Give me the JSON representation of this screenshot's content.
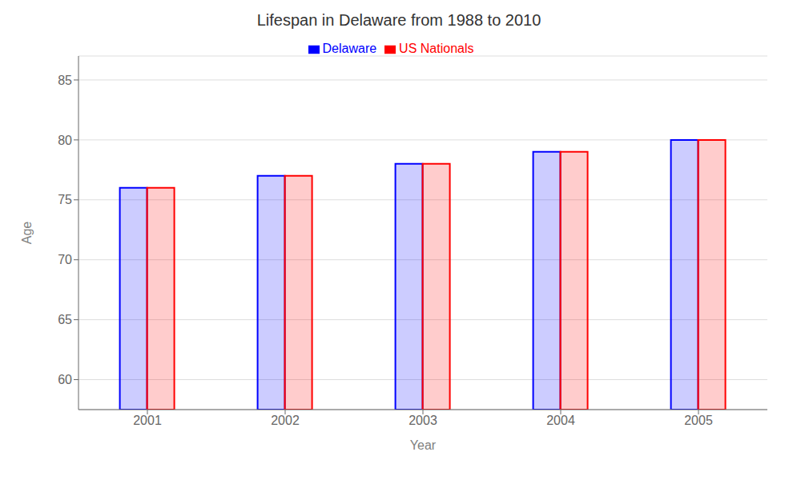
{
  "chart_data": {
    "type": "bar",
    "title": "Lifespan in Delaware from 1988 to 2010",
    "x_label": "Year",
    "y_label": "Age",
    "categories": [
      "2001",
      "2002",
      "2003",
      "2004",
      "2005"
    ],
    "series": [
      {
        "name": "Delaware",
        "color": "#0000FF",
        "values": [
          76,
          77,
          78,
          79,
          80
        ]
      },
      {
        "name": "US Nationals",
        "color": "#FF0000",
        "values": [
          76,
          77,
          78,
          79,
          80
        ]
      }
    ],
    "ylim": [
      57.5,
      87
    ],
    "yticks": [
      60,
      65,
      70,
      75,
      80,
      85
    ],
    "grid": true,
    "legend": "top"
  }
}
